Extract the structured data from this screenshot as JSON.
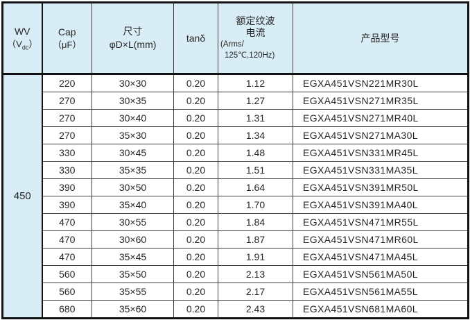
{
  "colors": {
    "header_bg": "#d9edf6",
    "frame_border": "#111111",
    "grid_border": "#3c3c3c",
    "text": "#262626"
  },
  "table": {
    "header": {
      "wv_title": "WV",
      "wv_unit_open": "（V",
      "wv_unit_sub": "dc",
      "wv_unit_close": "）",
      "cap_title": "Cap",
      "cap_unit": "（μF）",
      "size_title": "尺寸",
      "size_unit": "φD×L(mm)",
      "tand_title": "tanδ",
      "ripple_title_line1": "额定纹波",
      "ripple_title_line2": "电流",
      "ripple_unit_line1": "(Arms/",
      "ripple_unit_line2": "125℃,120Hz)",
      "model_title": "产品型号"
    },
    "wv_value": "450",
    "rows": [
      {
        "cap": "220",
        "size": "30×30",
        "tand": "0.20",
        "ripple": "1.12",
        "model": "EGXA451VSN221MR30L"
      },
      {
        "cap": "270",
        "size": "30×35",
        "tand": "0.20",
        "ripple": "1.27",
        "model": "EGXA451VSN271MR35L"
      },
      {
        "cap": "270",
        "size": "30×40",
        "tand": "0.20",
        "ripple": "1.31",
        "model": "EGXA451VSN271MR40L"
      },
      {
        "cap": "270",
        "size": "35×30",
        "tand": "0.20",
        "ripple": "1.34",
        "model": "EGXA451VSN271MA30L"
      },
      {
        "cap": "330",
        "size": "30×45",
        "tand": "0.20",
        "ripple": "1.48",
        "model": "EGXA451VSN331MR45L"
      },
      {
        "cap": "330",
        "size": "35×35",
        "tand": "0.20",
        "ripple": "1.51",
        "model": "EGXA451VSN331MA35L"
      },
      {
        "cap": "390",
        "size": "30×50",
        "tand": "0.20",
        "ripple": "1.64",
        "model": "EGXA451VSN391MR50L"
      },
      {
        "cap": "390",
        "size": "35×40",
        "tand": "0.20",
        "ripple": "1.70",
        "model": "EGXA451VSN391MA40L"
      },
      {
        "cap": "470",
        "size": "30×55",
        "tand": "0.20",
        "ripple": "1.84",
        "model": "EGXA451VSN471MR55L"
      },
      {
        "cap": "470",
        "size": "30×60",
        "tand": "0.20",
        "ripple": "1.87",
        "model": "EGXA451VSN471MR60L"
      },
      {
        "cap": "470",
        "size": "35×45",
        "tand": "0.20",
        "ripple": "1.91",
        "model": "EGXA451VSN471MA45L"
      },
      {
        "cap": "560",
        "size": "35×50",
        "tand": "0.20",
        "ripple": "2.13",
        "model": "EGXA451VSN561MA50L"
      },
      {
        "cap": "560",
        "size": "35×55",
        "tand": "0.20",
        "ripple": "2.17",
        "model": "EGXA451VSN561MA55L"
      },
      {
        "cap": "680",
        "size": "35×60",
        "tand": "0.20",
        "ripple": "2.43",
        "model": "EGXA451VSN681MA60L"
      }
    ]
  }
}
